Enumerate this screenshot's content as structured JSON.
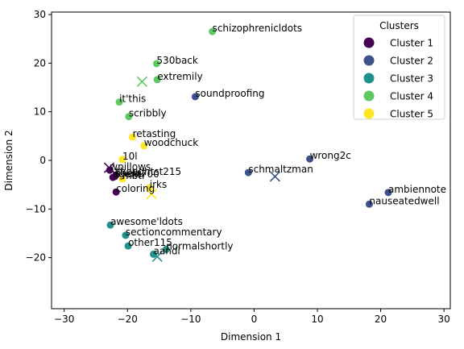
{
  "chart_data": {
    "type": "scatter",
    "title": "",
    "xlabel": "Dimension 1",
    "ylabel": "Dimension 2",
    "xlim": [
      -32,
      31
    ],
    "ylim": [
      -30.5,
      30.5
    ],
    "xticks": [
      -30,
      -20,
      -10,
      0,
      10,
      20,
      30
    ],
    "yticks": [
      -20,
      -10,
      0,
      10,
      20,
      30
    ],
    "grid": false,
    "legend": {
      "title": "Clusters",
      "placement": "top-right"
    },
    "series": [
      {
        "name": "Cluster 1",
        "color": "#440154",
        "points": [
          {
            "x": -22.8,
            "y": -2.0,
            "label": "wpillows"
          },
          {
            "x": -21.8,
            "y": -3.0,
            "label": "thoughtst215"
          },
          {
            "x": -22.0,
            "y": -3.3,
            "label": "baebil"
          },
          {
            "x": -22.3,
            "y": -3.5,
            "label": "agent700"
          },
          {
            "x": -21.8,
            "y": -6.5,
            "label": "coloring"
          }
        ],
        "centroid": {
          "x": -22.9,
          "y": -1.5
        }
      },
      {
        "name": "Cluster 2",
        "color": "#3b528b",
        "points": [
          {
            "x": -9.3,
            "y": 13.1,
            "label": "soundproofing"
          },
          {
            "x": -0.9,
            "y": -2.5,
            "label": "schmaltzman"
          },
          {
            "x": 8.8,
            "y": 0.3,
            "label": "wrong2c"
          },
          {
            "x": 21.2,
            "y": -6.6,
            "label": "ambiennote"
          },
          {
            "x": 18.2,
            "y": -9.0,
            "label": "nauseatedwell"
          }
        ],
        "centroid": {
          "x": 3.3,
          "y": -3.3
        }
      },
      {
        "name": "Cluster 3",
        "color": "#21918c",
        "points": [
          {
            "x": -22.7,
            "y": -13.3,
            "label": "awesome'ldots"
          },
          {
            "x": -20.3,
            "y": -15.4,
            "label": "sectioncommentary"
          },
          {
            "x": -19.9,
            "y": -17.6,
            "label": "other115"
          },
          {
            "x": -13.9,
            "y": -18.3,
            "label": "normalshortly"
          },
          {
            "x": -15.9,
            "y": -19.3,
            "label": "aandi"
          }
        ],
        "centroid": {
          "x": -15.3,
          "y": -19.8
        }
      },
      {
        "name": "Cluster 4",
        "color": "#5ec962",
        "points": [
          {
            "x": -6.6,
            "y": 26.5,
            "label": "schizophrenicldots"
          },
          {
            "x": -15.4,
            "y": 19.9,
            "label": "530back"
          },
          {
            "x": -15.3,
            "y": 16.6,
            "label": "extremily"
          },
          {
            "x": -21.3,
            "y": 12.0,
            "label": "it'this"
          },
          {
            "x": -19.8,
            "y": 9.0,
            "label": "scribbly"
          }
        ],
        "centroid": {
          "x": -17.7,
          "y": 16.2
        }
      },
      {
        "name": "Cluster 5",
        "color": "#fde725",
        "points": [
          {
            "x": -19.2,
            "y": 4.8,
            "label": "retasting"
          },
          {
            "x": -17.4,
            "y": 3.0,
            "label": "woodchuck"
          },
          {
            "x": -20.8,
            "y": 0.2,
            "label": "10l"
          },
          {
            "x": -20.8,
            "y": -3.8,
            "label": "mbtl"
          },
          {
            "x": -16.5,
            "y": -5.6,
            "label": "irks"
          }
        ],
        "centroid": {
          "x": -16.2,
          "y": -6.9
        }
      }
    ]
  }
}
